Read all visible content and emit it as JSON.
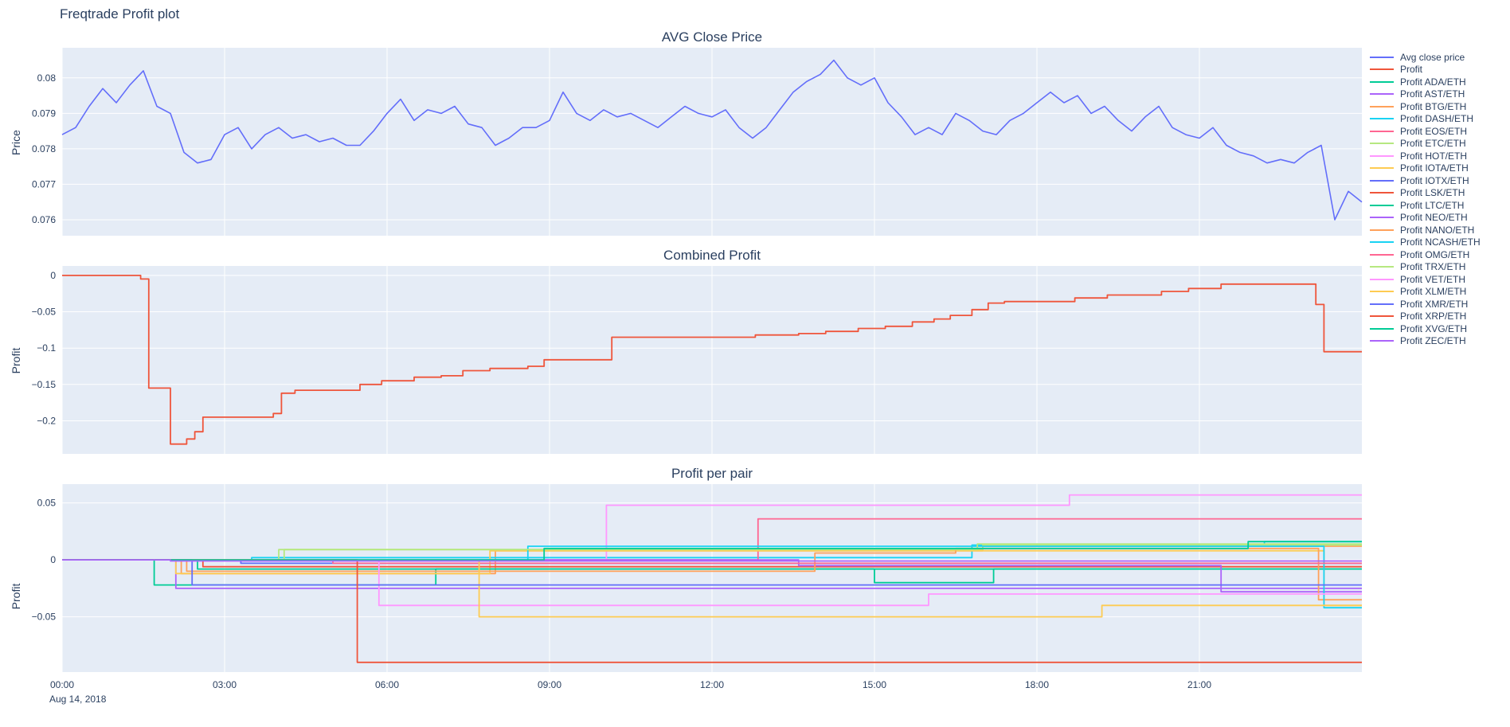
{
  "page": {
    "title": "Freqtrade Profit plot"
  },
  "colors": {
    "text": "#2a3f5f",
    "plot_bg": "#E5ECF6",
    "grid": "#ffffff",
    "paper": "#ffffff"
  },
  "xaxis": {
    "range": [
      0,
      24
    ],
    "tick_hours": [
      0,
      3,
      6,
      9,
      12,
      15,
      18,
      21
    ],
    "tick_labels": [
      "00:00",
      "03:00",
      "06:00",
      "09:00",
      "12:00",
      "15:00",
      "18:00",
      "21:00"
    ],
    "date_label": "Aug 14, 2018"
  },
  "legend": {
    "items": [
      {
        "label": "Avg close price",
        "color": "#636EFA"
      },
      {
        "label": "Profit",
        "color": "#EF553B"
      },
      {
        "label": "Profit ADA/ETH",
        "color": "#00CC96"
      },
      {
        "label": "Profit AST/ETH",
        "color": "#AB63FA"
      },
      {
        "label": "Profit BTG/ETH",
        "color": "#FFA15A"
      },
      {
        "label": "Profit DASH/ETH",
        "color": "#19D3F3"
      },
      {
        "label": "Profit EOS/ETH",
        "color": "#FF6692"
      },
      {
        "label": "Profit ETC/ETH",
        "color": "#B6E880"
      },
      {
        "label": "Profit HOT/ETH",
        "color": "#FF97FF"
      },
      {
        "label": "Profit IOTA/ETH",
        "color": "#FECB52"
      },
      {
        "label": "Profit IOTX/ETH",
        "color": "#636EFA"
      },
      {
        "label": "Profit LSK/ETH",
        "color": "#EF553B"
      },
      {
        "label": "Profit LTC/ETH",
        "color": "#00CC96"
      },
      {
        "label": "Profit NEO/ETH",
        "color": "#AB63FA"
      },
      {
        "label": "Profit NANO/ETH",
        "color": "#FFA15A"
      },
      {
        "label": "Profit NCASH/ETH",
        "color": "#19D3F3"
      },
      {
        "label": "Profit OMG/ETH",
        "color": "#FF6692"
      },
      {
        "label": "Profit TRX/ETH",
        "color": "#B6E880"
      },
      {
        "label": "Profit VET/ETH",
        "color": "#FF97FF"
      },
      {
        "label": "Profit XLM/ETH",
        "color": "#FECB52"
      },
      {
        "label": "Profit XMR/ETH",
        "color": "#636EFA"
      },
      {
        "label": "Profit XRP/ETH",
        "color": "#EF553B"
      },
      {
        "label": "Profit XVG/ETH",
        "color": "#00CC96"
      },
      {
        "label": "Profit ZEC/ETH",
        "color": "#AB63FA"
      }
    ]
  },
  "chart_data": [
    {
      "type": "line",
      "title": "AVG Close Price",
      "ylabel": "Price",
      "ylim": [
        0.07555,
        0.08085
      ],
      "yticks": [
        0.076,
        0.077,
        0.078,
        0.079,
        0.08
      ],
      "ytick_labels": [
        "0.076",
        "0.077",
        "0.078",
        "0.079",
        "0.08"
      ],
      "show_xaxis": false,
      "series": [
        {
          "name": "Avg close price",
          "color": "#636EFA",
          "mode": "linear",
          "width": 1.6,
          "x_start": 0,
          "x_step": 0.25,
          "y": [
            0.0784,
            0.0786,
            0.0792,
            0.0797,
            0.0793,
            0.0798,
            0.0802,
            0.0792,
            0.079,
            0.0779,
            0.0776,
            0.0777,
            0.0784,
            0.0786,
            0.078,
            0.0784,
            0.0786,
            0.0783,
            0.0784,
            0.0782,
            0.0783,
            0.0781,
            0.0781,
            0.0785,
            0.079,
            0.0794,
            0.0788,
            0.0791,
            0.079,
            0.0792,
            0.0787,
            0.0786,
            0.0781,
            0.0783,
            0.0786,
            0.0786,
            0.0788,
            0.0796,
            0.079,
            0.0788,
            0.0791,
            0.0789,
            0.079,
            0.0788,
            0.0786,
            0.0789,
            0.0792,
            0.079,
            0.0789,
            0.0791,
            0.0786,
            0.0783,
            0.0786,
            0.0791,
            0.0796,
            0.0799,
            0.0801,
            0.0805,
            0.08,
            0.0798,
            0.08,
            0.0793,
            0.0789,
            0.0784,
            0.0786,
            0.0784,
            0.079,
            0.0788,
            0.0785,
            0.0784,
            0.0788,
            0.079,
            0.0793,
            0.0796,
            0.0793,
            0.0795,
            0.079,
            0.0792,
            0.0788,
            0.0785,
            0.0789,
            0.0792,
            0.0786,
            0.0784,
            0.0783,
            0.0786,
            0.0781,
            0.0779,
            0.0778,
            0.0776,
            0.0777,
            0.0776,
            0.0779,
            0.0781,
            0.076,
            0.0768,
            0.0765
          ]
        }
      ]
    },
    {
      "type": "line",
      "title": "Combined Profit",
      "ylabel": "Profit",
      "ylim": [
        -0.2455,
        0.013
      ],
      "yticks": [
        0,
        -0.05,
        -0.1,
        -0.15,
        -0.2
      ],
      "ytick_labels": [
        "0",
        "−0.05",
        "−0.1",
        "−0.15",
        "−0.2"
      ],
      "show_xaxis": false,
      "series": [
        {
          "name": "Profit",
          "color": "#EF553B",
          "mode": "step",
          "width": 1.8,
          "points": [
            [
              0,
              0
            ],
            [
              1.45,
              -0.005
            ],
            [
              1.6,
              -0.155
            ],
            [
              2.0,
              -0.232
            ],
            [
              2.3,
              -0.225
            ],
            [
              2.45,
              -0.215
            ],
            [
              2.6,
              -0.195
            ],
            [
              3.9,
              -0.19
            ],
            [
              4.05,
              -0.162
            ],
            [
              4.3,
              -0.158
            ],
            [
              5.5,
              -0.15
            ],
            [
              5.9,
              -0.145
            ],
            [
              6.5,
              -0.14
            ],
            [
              7.0,
              -0.138
            ],
            [
              7.4,
              -0.131
            ],
            [
              7.9,
              -0.128
            ],
            [
              8.6,
              -0.125
            ],
            [
              8.9,
              -0.116
            ],
            [
              10.15,
              -0.085
            ],
            [
              12.8,
              -0.082
            ],
            [
              13.6,
              -0.08
            ],
            [
              14.1,
              -0.077
            ],
            [
              14.7,
              -0.073
            ],
            [
              15.2,
              -0.07
            ],
            [
              15.7,
              -0.064
            ],
            [
              16.1,
              -0.06
            ],
            [
              16.4,
              -0.055
            ],
            [
              16.8,
              -0.047
            ],
            [
              17.1,
              -0.038
            ],
            [
              17.4,
              -0.036
            ],
            [
              18.7,
              -0.031
            ],
            [
              19.3,
              -0.027
            ],
            [
              20.3,
              -0.022
            ],
            [
              20.8,
              -0.018
            ],
            [
              21.4,
              -0.012
            ],
            [
              23.15,
              -0.04
            ],
            [
              23.3,
              -0.105
            ],
            [
              24,
              -0.105
            ]
          ]
        }
      ]
    },
    {
      "type": "line",
      "title": "Profit per pair",
      "ylabel": "Profit",
      "ylim": [
        -0.0985,
        0.0665
      ],
      "yticks": [
        0.05,
        0,
        -0.05
      ],
      "ytick_labels": [
        "0.05",
        "0",
        "−0.05"
      ],
      "show_xaxis": true,
      "series": [
        {
          "name": "Profit ADA/ETH",
          "color": "#00CC96",
          "mode": "step",
          "points": [
            [
              0,
              0
            ],
            [
              1.7,
              -0.022
            ],
            [
              6.9,
              -0.008
            ],
            [
              24,
              -0.008
            ]
          ]
        },
        {
          "name": "Profit AST/ETH",
          "color": "#AB63FA",
          "mode": "step",
          "points": [
            [
              0,
              0
            ],
            [
              2.1,
              -0.025
            ],
            [
              24,
              -0.025
            ]
          ]
        },
        {
          "name": "Profit BTG/ETH",
          "color": "#FFA15A",
          "mode": "step",
          "points": [
            [
              0,
              0
            ],
            [
              2.2,
              -0.012
            ],
            [
              8.0,
              0.008
            ],
            [
              17.0,
              0.012
            ],
            [
              24,
              0.012
            ]
          ]
        },
        {
          "name": "Profit DASH/ETH",
          "color": "#19D3F3",
          "mode": "step",
          "points": [
            [
              0,
              0
            ],
            [
              3.5,
              0.002
            ],
            [
              16.8,
              0.013
            ],
            [
              22.2,
              0.016
            ],
            [
              24,
              0.016
            ]
          ]
        },
        {
          "name": "Profit EOS/ETH",
          "color": "#FF6692",
          "mode": "step",
          "points": [
            [
              0,
              0
            ],
            [
              12.85,
              0.036
            ],
            [
              24,
              0.036
            ]
          ]
        },
        {
          "name": "Profit ETC/ETH",
          "color": "#B6E880",
          "mode": "step",
          "points": [
            [
              0,
              0
            ],
            [
              4.0,
              0.009
            ],
            [
              17.0,
              0.013
            ],
            [
              24,
              0.013
            ]
          ]
        },
        {
          "name": "Profit HOT/ETH",
          "color": "#FF97FF",
          "mode": "step",
          "points": [
            [
              0,
              0
            ],
            [
              10.05,
              0.048
            ],
            [
              18.6,
              0.057
            ],
            [
              24,
              0.057
            ]
          ]
        },
        {
          "name": "Profit IOTA/ETH",
          "color": "#FECB52",
          "mode": "step",
          "points": [
            [
              0,
              0
            ],
            [
              2.1,
              -0.012
            ],
            [
              7.9,
              0.008
            ],
            [
              23.3,
              -0.04
            ],
            [
              24,
              -0.04
            ]
          ]
        },
        {
          "name": "Profit IOTX/ETH",
          "color": "#636EFA",
          "mode": "step",
          "points": [
            [
              0,
              0
            ],
            [
              3.3,
              -0.003
            ],
            [
              24,
              -0.003
            ]
          ]
        },
        {
          "name": "Profit LSK/ETH",
          "color": "#EF553B",
          "mode": "step",
          "points": [
            [
              0,
              0
            ],
            [
              2.6,
              -0.006
            ],
            [
              24,
              -0.006
            ]
          ]
        },
        {
          "name": "Profit LTC/ETH",
          "color": "#00CC96",
          "mode": "step",
          "points": [
            [
              0,
              0
            ],
            [
              2.5,
              -0.008
            ],
            [
              15.0,
              -0.02
            ],
            [
              17.2,
              -0.008
            ],
            [
              24,
              -0.008
            ]
          ]
        },
        {
          "name": "Profit NEO/ETH",
          "color": "#AB63FA",
          "mode": "step",
          "points": [
            [
              0,
              0
            ],
            [
              13.6,
              -0.005
            ],
            [
              21.4,
              -0.028
            ],
            [
              24,
              -0.028
            ]
          ]
        },
        {
          "name": "Profit NANO/ETH",
          "color": "#FFA15A",
          "mode": "step",
          "points": [
            [
              0,
              0
            ],
            [
              2.3,
              -0.01
            ],
            [
              13.9,
              0.006
            ],
            [
              16.5,
              0.01
            ],
            [
              23.2,
              -0.035
            ],
            [
              24,
              -0.035
            ]
          ]
        },
        {
          "name": "Profit NCASH/ETH",
          "color": "#19D3F3",
          "mode": "step",
          "points": [
            [
              0,
              0
            ],
            [
              8.6,
              0.012
            ],
            [
              23.3,
              -0.042
            ],
            [
              24,
              -0.042
            ]
          ]
        },
        {
          "name": "Profit OMG/ETH",
          "color": "#FF6692",
          "mode": "step",
          "points": [
            [
              0,
              0
            ],
            [
              5.0,
              -0.003
            ],
            [
              24,
              -0.003
            ]
          ]
        },
        {
          "name": "Profit TRX/ETH",
          "color": "#B6E880",
          "mode": "step",
          "points": [
            [
              0,
              0
            ],
            [
              4.1,
              0.009
            ],
            [
              16.9,
              0.014
            ],
            [
              24,
              0.014
            ]
          ]
        },
        {
          "name": "Profit VET/ETH",
          "color": "#FF97FF",
          "mode": "step",
          "points": [
            [
              0,
              0
            ],
            [
              5.85,
              -0.04
            ],
            [
              16.0,
              -0.03
            ],
            [
              24,
              -0.03
            ]
          ]
        },
        {
          "name": "Profit XLM/ETH",
          "color": "#FECB52",
          "mode": "step",
          "points": [
            [
              0,
              0
            ],
            [
              7.7,
              -0.05
            ],
            [
              19.2,
              -0.04
            ],
            [
              24,
              -0.04
            ]
          ]
        },
        {
          "name": "Profit XMR/ETH",
          "color": "#636EFA",
          "mode": "step",
          "points": [
            [
              0,
              0
            ],
            [
              2.4,
              -0.022
            ],
            [
              24,
              -0.022
            ]
          ]
        },
        {
          "name": "Profit XRP/ETH",
          "color": "#EF553B",
          "mode": "step",
          "points": [
            [
              0,
              0
            ],
            [
              5.45,
              -0.09
            ],
            [
              24,
              -0.09
            ]
          ]
        },
        {
          "name": "Profit XVG/ETH",
          "color": "#00CC96",
          "mode": "step",
          "points": [
            [
              0,
              0
            ],
            [
              8.9,
              0.01
            ],
            [
              21.9,
              0.016
            ],
            [
              24,
              0.016
            ]
          ]
        },
        {
          "name": "Profit ZEC/ETH",
          "color": "#AB63FA",
          "mode": "step",
          "points": [
            [
              0,
              0
            ],
            [
              2.0,
              -0.001
            ],
            [
              24,
              -0.001
            ]
          ]
        }
      ]
    }
  ]
}
